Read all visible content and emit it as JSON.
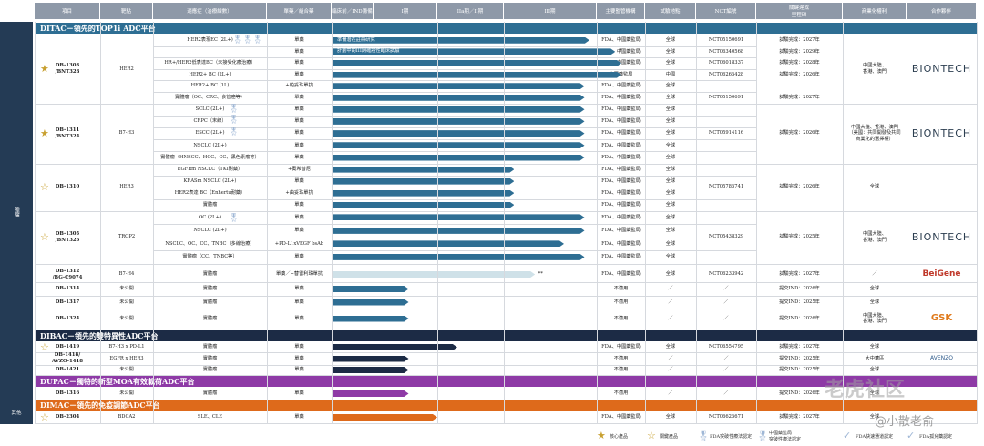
{
  "colors": {
    "ditac": "#2e6e93",
    "dibac": "#1c2b45",
    "dupac": "#8e3aa6",
    "dimac": "#de6a1b",
    "header": "#8e99a8",
    "side": "#243b55",
    "star_gold": "#c8a030",
    "light_bar": "#cfe1e8"
  },
  "header": {
    "cols": [
      "項目",
      "靶點",
      "適應症（治療線數）",
      "單藥／組合藥",
      "臨床前／IND籌備",
      "I期",
      "IIa期／II期",
      "III期",
      "主要監管機構",
      "試驗地點",
      "NCT編號",
      "關鍵達成\n里程碑",
      "商業化權利",
      "合作夥伴"
    ]
  },
  "side_labels": {
    "main": "腫瘤",
    "other": "其他"
  },
  "sections": {
    "ditac": "DITAC－領先的TOP1i ADC平台",
    "dibac": "DIBAC－領先的雙特異性ADC平台",
    "dupac": "DUPAC－獨特的新型MOA有效載荷ADC平台",
    "dimac": "DIMAC－領先的免疫調節ADC平台"
  },
  "projects": {
    "db1303": {
      "code": "DB-1303\n/BNT323",
      "target": "HER2",
      "rights": "中國大陸、\n香港、澳門",
      "partner": "BIONTECH"
    },
    "db1311": {
      "code": "DB-1311\n/BNT324",
      "target": "B7-H3",
      "nct": "NCT05914116",
      "milestone": "試驗完成：2026年",
      "rights": "中國大陸、香港、澳門\n（美國：共同開發及共同\n商業化的選擇權）",
      "partner": "BIONTECH"
    },
    "db1310": {
      "code": "DB-1310",
      "target": "HER3",
      "nct": "NCT05785741",
      "milestone": "試驗完成：2026年",
      "rights": "全球"
    },
    "db1305": {
      "code": "DB-1305\n/BNT325",
      "target": "TROP2",
      "nct": "NCT05438329",
      "milestone": "試驗完成：2025年",
      "rights": "中國大陸、\n香港、澳門",
      "partner": "BIONTECH"
    },
    "db1312": {
      "code": "DB-1312\n/BG-C9074",
      "target": "B7-H4",
      "ind": "實體瘤",
      "combo": "單藥／+替雷利珠單抗",
      "reg": "FDA、中國藥監局",
      "site": "全球",
      "nct": "NCT06233942",
      "milestone": "試驗完成：2027年",
      "rights": "／",
      "partner": "BeiGene"
    },
    "db1314": {
      "code": "DB-1314",
      "target": "未公開",
      "ind": "實體瘤",
      "combo": "單藥",
      "reg": "不適用",
      "site": "／",
      "nct": "／",
      "milestone": "提交IND：2026年",
      "rights": "全球"
    },
    "db1317": {
      "code": "DB-1317",
      "target": "未公開",
      "ind": "實體瘤",
      "combo": "單藥",
      "reg": "不適用",
      "site": "／",
      "nct": "／",
      "milestone": "提交IND：2025年",
      "rights": "全球"
    },
    "db1324": {
      "code": "DB-1324",
      "target": "未公開",
      "ind": "實體瘤",
      "combo": "單藥",
      "reg": "不適用",
      "site": "／",
      "nct": "／",
      "milestone": "提交IND：2026年",
      "rights": "中國大陸、\n香港、澳門",
      "partner": "GSK"
    },
    "db1419": {
      "code": "DB-1419",
      "target": "B7-H3 x PD-L1",
      "ind": "實體瘤",
      "combo": "單藥",
      "reg": "FDA、中國藥監局",
      "site": "全球",
      "nct": "NCT06554795",
      "milestone": "試驗完成：2027年",
      "rights": "全球"
    },
    "db1418": {
      "code": "DB-1418/\nAVZO-1418",
      "target": "EGFR x HER3",
      "ind": "實體瘤",
      "combo": "單藥",
      "reg": "不適用",
      "site": "／",
      "nct": "／",
      "milestone": "提交IND：2025年",
      "rights": "大中華區",
      "partner": "AVENZO"
    },
    "db1421": {
      "code": "DB-1421",
      "target": "未公開",
      "ind": "實體瘤",
      "combo": "單藥",
      "reg": "不適用",
      "site": "／",
      "nct": "／",
      "milestone": "提交IND：2025年",
      "rights": "全球"
    },
    "db1316": {
      "code": "DB-1316",
      "target": "未公開",
      "ind": "實體瘤",
      "combo": "單藥",
      "reg": "不適用",
      "site": "／",
      "nct": "／",
      "milestone": "提交IND：2026年",
      "rights": "全球"
    },
    "db2304": {
      "code": "DB-2304",
      "target": "BDCA2",
      "ind": "SLE、CLE",
      "combo": "單藥",
      "reg": "FDA、中國藥監局",
      "site": "全球",
      "nct": "NCT06625671",
      "milestone": "試驗完成：2027年",
      "rights": "全球"
    }
  },
  "rows1303": [
    {
      "ind": "HER2表現EC (2L+)",
      "combo": "單藥",
      "reg": "FDA、中國藥監局",
      "site": "全球",
      "nct": "NCT05150691",
      "ms": "試驗完成：2027年",
      "bar": "準備潛在註冊研究",
      "p": 4.82
    },
    {
      "ind": "",
      "combo": "單藥",
      "reg": "FDA、中國藥監局",
      "site": "全球",
      "nct": "NCT06340568",
      "ms": "試驗完成：2029年",
      "bar": "計劃中的III期確證性臨床試驗",
      "p": 5.45,
      "mark": "*"
    },
    {
      "ind": "HR+/HER2低表達BC（未接受化療治療）",
      "combo": "單藥",
      "reg": "FDA、中國藥監局",
      "site": "全球",
      "nct": "NCT06018337",
      "ms": "試驗完成：2028年",
      "bar": "",
      "p": 5.6
    },
    {
      "ind": "HER2+ BC (2L+)",
      "combo": "單藥",
      "reg": "中國藥監局",
      "site": "中國",
      "nct": "NCT06265428",
      "ms": "試驗完成：2026年",
      "bar": "",
      "p": 5.6
    },
    {
      "ind": "HER2+ BC (1L)",
      "combo": "+帕妥珠單抗",
      "reg": "FDA、中國藥監局",
      "site": "全球",
      "nct": "",
      "ms": "",
      "bar": "",
      "p": 4.7
    },
    {
      "ind": "實體瘤（OC、CRC、食管癌等）",
      "combo": "單藥",
      "reg": "FDA、中國藥監局",
      "site": "全球",
      "nct": "NCT05150691",
      "ms": "試驗完成：2027年",
      "bar": "",
      "p": 4.7
    }
  ],
  "rows1311": [
    {
      "ind": "SCLC (2L+)",
      "combo": "單藥",
      "reg": "FDA、中國藥監局",
      "site": "全球",
      "p": 4.7
    },
    {
      "ind": "CRPC（末線）",
      "combo": "單藥",
      "reg": "FDA、中國藥監局",
      "site": "全球",
      "p": 4.7
    },
    {
      "ind": "ESCC (2L+)",
      "combo": "單藥",
      "reg": "FDA、中國藥監局",
      "site": "全球",
      "p": 4.7
    },
    {
      "ind": "NSCLC (2L+)",
      "combo": "單藥",
      "reg": "FDA、中國藥監局",
      "site": "全球",
      "p": 4.7
    },
    {
      "ind": "實體瘤（HNSCC、HCC、CC、黑色素瘤等）",
      "combo": "單藥",
      "reg": "FDA、中國藥監局",
      "site": "全球",
      "p": 4.7
    }
  ],
  "rows1310": [
    {
      "ind": "EGFRm NSCLC（TKI耐藥）",
      "combo": "+奧希替尼",
      "reg": "FDA、中國藥監局",
      "site": "全球",
      "p": 3.2
    },
    {
      "ind": "KRASm NSCLC (2L+)",
      "combo": "單藥",
      "reg": "FDA、中國藥監局",
      "site": "全球",
      "p": 3.2
    },
    {
      "ind": "HER2表達 BC（Enhertu耐藥）",
      "combo": "+曲妥珠單抗",
      "reg": "FDA、中國藥監局",
      "site": "全球",
      "p": 3.2
    },
    {
      "ind": "實體瘤",
      "combo": "單藥",
      "reg": "FDA、中國藥監局",
      "site": "全球",
      "p": 3.2
    }
  ],
  "rows1305": [
    {
      "ind": "OC (2L+)",
      "combo": "單藥",
      "reg": "FDA、中國藥監局",
      "site": "全球",
      "p": 4.7
    },
    {
      "ind": "NSCLC (2L+)",
      "combo": "單藥",
      "reg": "FDA、中國藥監局",
      "site": "全球",
      "p": 4.7
    },
    {
      "ind": "NSCLC、OC、CC、TNBC（多線治療）",
      "combo": "+PD-L1xVEGF bsAb",
      "reg": "FDA、中國藥監局",
      "site": "全球",
      "p": 4.2
    },
    {
      "ind": "實體瘤（CC、TNBC等）",
      "combo": "單藥",
      "reg": "FDA、中國藥監局",
      "site": "全球",
      "p": 4.7
    }
  ],
  "legend": {
    "core": "核心產品",
    "key": "關鍵產品",
    "fda_btd": "FDA突破性療法認定",
    "nmpa_btd": "中國藥監局\n突破性療法認定",
    "fda_fast": "FDA快速通道認定",
    "fda_orphan": "FDA孤兒藥認定"
  },
  "watermark": {
    "text": "老虎社区",
    "handle": "@小散老俞"
  }
}
